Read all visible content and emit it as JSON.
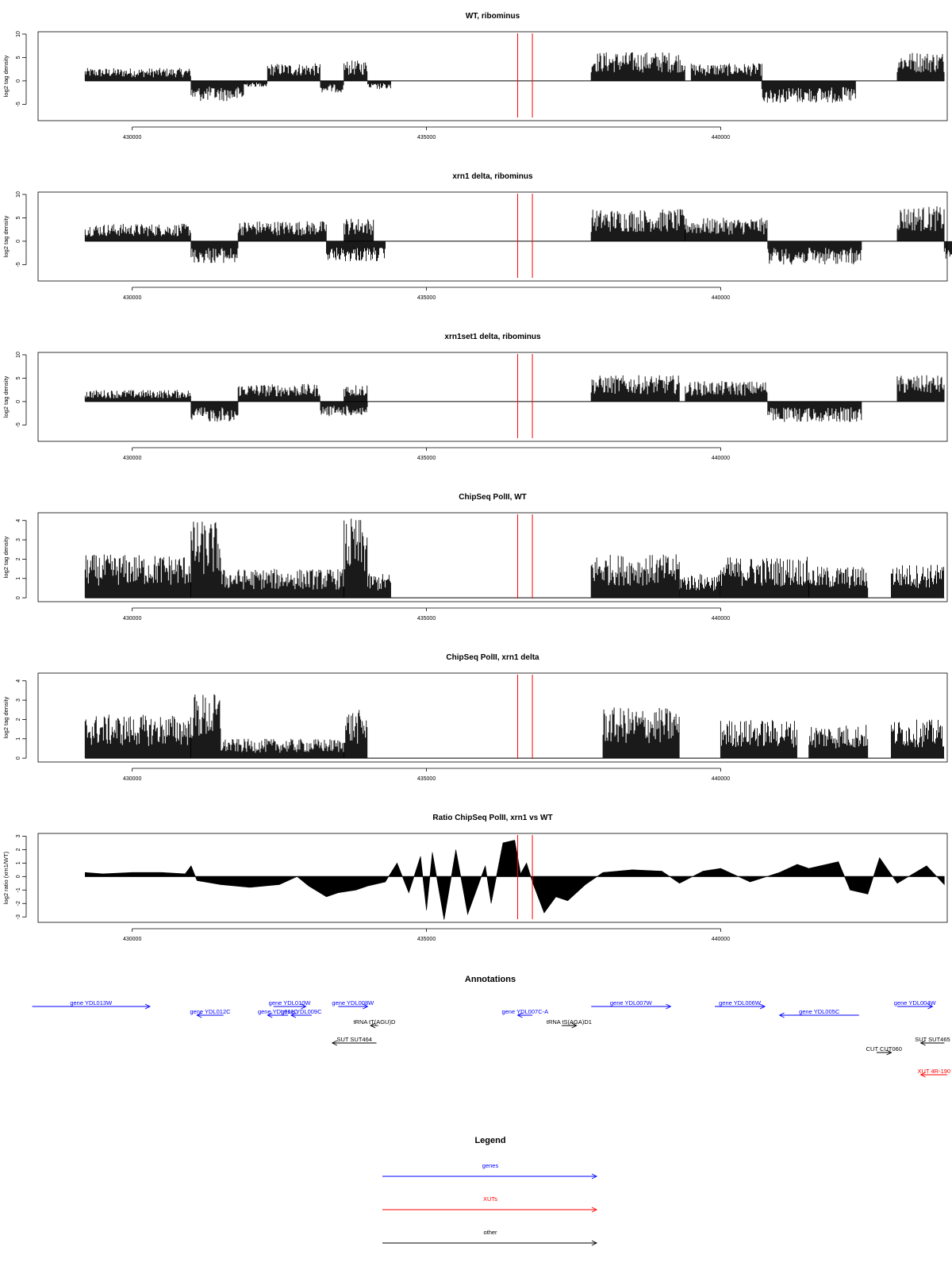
{
  "colors": {
    "signal": "#000000",
    "marker": "#ff0000",
    "gene": "#0000ff",
    "xut": "#ff0000",
    "other": "#000000",
    "frame": "#000000"
  },
  "chart_data": [
    {
      "type": "bar",
      "title": "WT, ribominus",
      "xlabel": "",
      "ylabel": "log2 tag density",
      "xlim": [
        428400,
        443850
      ],
      "ylim": [
        -8.5,
        10.5
      ],
      "yticks": [
        -5,
        0,
        5,
        10
      ],
      "ytick_labels": [
        "-5",
        "0",
        "5",
        "10"
      ],
      "xticks": [
        430000,
        435000,
        440000
      ],
      "xtick_labels": [
        "430000",
        "435000",
        "440000"
      ],
      "baseline": 0,
      "red_markers": [
        436550,
        436800
      ],
      "segments": [
        {
          "x": [
            429200,
            431000
          ],
          "level": 2.2
        },
        {
          "x": [
            431000,
            431900
          ],
          "level": -3.5
        },
        {
          "x": [
            431900,
            432300
          ],
          "level": -1.0
        },
        {
          "x": [
            432300,
            433200
          ],
          "level": 3.0
        },
        {
          "x": [
            433200,
            433600
          ],
          "level": -2.0
        },
        {
          "x": [
            433600,
            434000
          ],
          "level": 3.5
        },
        {
          "x": [
            434000,
            434400
          ],
          "level": -1.5
        },
        {
          "x": [
            437800,
            439400
          ],
          "level": 5.0
        },
        {
          "x": [
            439500,
            440700
          ],
          "level": 3.0
        },
        {
          "x": [
            440700,
            442300
          ],
          "level": -3.8
        },
        {
          "x": [
            443000,
            443800
          ],
          "level": 5.0
        }
      ]
    },
    {
      "type": "bar",
      "title": "xrn1 delta, ribominus",
      "xlabel": "",
      "ylabel": "log2 tag density",
      "xlim": [
        428400,
        443850
      ],
      "ylim": [
        -8.5,
        10.5
      ],
      "yticks": [
        -5,
        0,
        5,
        10
      ],
      "ytick_labels": [
        "-5",
        "0",
        "5",
        "10"
      ],
      "xticks": [
        430000,
        435000,
        440000
      ],
      "xtick_labels": [
        "430000",
        "435000",
        "440000"
      ],
      "baseline": 0,
      "red_markers": [
        436550,
        436800
      ],
      "segments": [
        {
          "x": [
            429200,
            431000
          ],
          "level": 3.0
        },
        {
          "x": [
            431000,
            431800
          ],
          "level": -3.8
        },
        {
          "x": [
            431800,
            433300
          ],
          "level": 3.5
        },
        {
          "x": [
            433300,
            434300
          ],
          "level": -3.5
        },
        {
          "x": [
            433600,
            434100
          ],
          "level": 4.0
        },
        {
          "x": [
            437800,
            439400
          ],
          "level": 5.5
        },
        {
          "x": [
            439400,
            440800
          ],
          "level": 4.0
        },
        {
          "x": [
            440800,
            442400
          ],
          "level": -4.0
        },
        {
          "x": [
            443000,
            443800
          ],
          "level": 6.0
        },
        {
          "x": [
            443800,
            444250
          ],
          "level": -3.0
        }
      ]
    },
    {
      "type": "bar",
      "title": "xrn1set1 delta, ribominus",
      "xlabel": "",
      "ylabel": "log2 tag density",
      "xlim": [
        428400,
        443850
      ],
      "ylim": [
        -8.5,
        10.5
      ],
      "yticks": [
        -5,
        0,
        5,
        10
      ],
      "ytick_labels": [
        "-5",
        "0",
        "5",
        "10"
      ],
      "xticks": [
        430000,
        435000,
        440000
      ],
      "xtick_labels": [
        "430000",
        "435000",
        "440000"
      ],
      "baseline": 0,
      "red_markers": [
        436550,
        436800
      ],
      "segments": [
        {
          "x": [
            429200,
            431000
          ],
          "level": 2.0
        },
        {
          "x": [
            431000,
            431800
          ],
          "level": -3.5
        },
        {
          "x": [
            431800,
            433200
          ],
          "level": 3.0
        },
        {
          "x": [
            433200,
            434000
          ],
          "level": -2.5
        },
        {
          "x": [
            433600,
            434000
          ],
          "level": 3.0
        },
        {
          "x": [
            437800,
            439300
          ],
          "level": 4.5
        },
        {
          "x": [
            439400,
            440800
          ],
          "level": 3.5
        },
        {
          "x": [
            440800,
            442400
          ],
          "level": -3.5
        },
        {
          "x": [
            443000,
            443800
          ],
          "level": 4.5
        }
      ]
    },
    {
      "type": "bar",
      "title": "ChipSeq PolII, WT",
      "xlabel": "",
      "ylabel": "log2 tag density",
      "xlim": [
        428400,
        443850
      ],
      "ylim": [
        -0.2,
        4.4
      ],
      "yticks": [
        0,
        1,
        2,
        3,
        4
      ],
      "ytick_labels": [
        "0",
        "1",
        "2",
        "3",
        "4"
      ],
      "xticks": [
        430000,
        435000,
        440000
      ],
      "xtick_labels": [
        "430000",
        "435000",
        "440000"
      ],
      "baseline": 0,
      "red_markers": [
        436550,
        436800
      ],
      "segments": [
        {
          "x": [
            429200,
            431000
          ],
          "level": 1.8
        },
        {
          "x": [
            431000,
            431500
          ],
          "level": 3.2
        },
        {
          "x": [
            431500,
            433600
          ],
          "level": 1.2
        },
        {
          "x": [
            433600,
            434000
          ],
          "level": 3.3
        },
        {
          "x": [
            434000,
            434400
          ],
          "level": 1.0
        },
        {
          "x": [
            437800,
            439300
          ],
          "level": 1.8
        },
        {
          "x": [
            439300,
            440000
          ],
          "level": 1.0
        },
        {
          "x": [
            440000,
            441500
          ],
          "level": 1.7
        },
        {
          "x": [
            441500,
            442500
          ],
          "level": 1.3
        },
        {
          "x": [
            442900,
            443800
          ],
          "level": 1.4
        }
      ]
    },
    {
      "type": "bar",
      "title": "ChipSeq PolII, xrn1 delta",
      "xlabel": "",
      "ylabel": "log2 tag density",
      "xlim": [
        428400,
        443850
      ],
      "ylim": [
        -0.2,
        4.4
      ],
      "yticks": [
        0,
        1,
        2,
        3,
        4
      ],
      "ytick_labels": [
        "0",
        "1",
        "2",
        "3",
        "4"
      ],
      "xticks": [
        430000,
        435000,
        440000
      ],
      "xtick_labels": [
        "430000",
        "435000",
        "440000"
      ],
      "baseline": 0,
      "red_markers": [
        436550,
        436800
      ],
      "segments": [
        {
          "x": [
            429200,
            431000
          ],
          "level": 1.8
        },
        {
          "x": [
            431000,
            431500
          ],
          "level": 2.7
        },
        {
          "x": [
            431500,
            433600
          ],
          "level": 0.8
        },
        {
          "x": [
            433600,
            434000
          ],
          "level": 2.0
        },
        {
          "x": [
            438000,
            439300
          ],
          "level": 2.1
        },
        {
          "x": [
            440000,
            441300
          ],
          "level": 1.6
        },
        {
          "x": [
            441500,
            442500
          ],
          "level": 1.4
        },
        {
          "x": [
            442900,
            443800
          ],
          "level": 1.6
        }
      ]
    },
    {
      "type": "area",
      "title": "Ratio ChipSeq PolII, xrn1 vs WT",
      "xlabel": "",
      "ylabel": "log2 ratio (xrn1/WT)",
      "xlim": [
        428400,
        443850
      ],
      "ylim": [
        -3.4,
        3.2
      ],
      "yticks": [
        -3,
        -2,
        -1,
        0,
        1,
        2,
        3
      ],
      "ytick_labels": [
        "-3",
        "-2",
        "-1",
        "0",
        "1",
        "2",
        "3"
      ],
      "xticks": [
        430000,
        435000,
        440000
      ],
      "xtick_labels": [
        "430000",
        "435000",
        "440000"
      ],
      "baseline": 0,
      "red_markers": [
        436550,
        436800
      ],
      "x": [
        429200,
        429500,
        430000,
        430500,
        430900,
        431000,
        431100,
        431500,
        432000,
        432500,
        432800,
        433000,
        433300,
        433500,
        433800,
        434000,
        434300,
        434500,
        434700,
        434900,
        435000,
        435100,
        435300,
        435500,
        435700,
        436000,
        436100,
        436300,
        436500,
        436600,
        436700,
        436800,
        437000,
        437200,
        437400,
        437700,
        438000,
        438500,
        439000,
        439300,
        439700,
        440000,
        440500,
        441000,
        441300,
        441500,
        442000,
        442200,
        442500,
        442700,
        443000,
        443500,
        443800
      ],
      "y": [
        0.3,
        0.2,
        0.3,
        0.3,
        0.2,
        0.8,
        -0.3,
        -0.6,
        -0.8,
        -0.6,
        0.0,
        -0.7,
        -1.5,
        -1.2,
        -1.0,
        -0.7,
        -0.4,
        1.0,
        -1.2,
        1.5,
        -2.5,
        1.8,
        -3.2,
        2.0,
        -2.8,
        0.8,
        -2.0,
        2.5,
        2.7,
        0.2,
        1.0,
        -0.4,
        -2.7,
        -1.5,
        -1.8,
        -0.6,
        0.3,
        0.5,
        0.4,
        -0.5,
        0.4,
        0.6,
        -0.4,
        0.3,
        0.9,
        0.6,
        1.1,
        -1.0,
        -1.3,
        1.4,
        -0.5,
        0.8,
        -0.6
      ]
    }
  ],
  "annotations": {
    "title": "Annotations",
    "xlim": [
      428400,
      443850
    ],
    "items": [
      {
        "label": "gene YDL013W",
        "x": [
          428300,
          430300
        ],
        "row": 0,
        "strand": "+",
        "kind": "gene"
      },
      {
        "label": "gene YDL012C",
        "x": [
          431100,
          431550
        ],
        "row": 1,
        "strand": "-",
        "kind": "gene"
      },
      {
        "label": "gene YDL010W",
        "x": [
          432400,
          432950
        ],
        "row": 0,
        "strand": "+",
        "kind": "gene"
      },
      {
        "label": "gene YDL011C",
        "x": [
          432300,
          432650
        ],
        "row": 1,
        "strand": "-",
        "kind": "gene"
      },
      {
        "label": "gene YDL009C",
        "x": [
          432700,
          433050
        ],
        "row": 1,
        "strand": "-",
        "kind": "gene"
      },
      {
        "label": "gene YDL008W",
        "x": [
          433500,
          434000
        ],
        "row": 0,
        "strand": "+",
        "kind": "gene"
      },
      {
        "label": "tRNA tT(AGU)D",
        "x": [
          434050,
          434180
        ],
        "row": 2,
        "strand": "-",
        "kind": "other"
      },
      {
        "label": "SUT SUT464",
        "x": [
          433400,
          434150
        ],
        "row": 3,
        "strand": "-",
        "kind": "other"
      },
      {
        "label": "gene YDL007C-A",
        "x": [
          436550,
          436800
        ],
        "row": 1,
        "strand": "-",
        "kind": "gene"
      },
      {
        "label": "tRNA tS(AGA)D1",
        "x": [
          437300,
          437550
        ],
        "row": 2,
        "strand": "+",
        "kind": "other"
      },
      {
        "label": "gene YDL007W",
        "x": [
          437800,
          439150
        ],
        "row": 0,
        "strand": "+",
        "kind": "gene"
      },
      {
        "label": "gene YDL006W",
        "x": [
          439900,
          440750
        ],
        "row": 0,
        "strand": "+",
        "kind": "gene"
      },
      {
        "label": "gene YDL005C",
        "x": [
          441000,
          442350
        ],
        "row": 1,
        "strand": "-",
        "kind": "gene"
      },
      {
        "label": "gene YDL004W",
        "x": [
          443000,
          443600
        ],
        "row": 0,
        "strand": "+",
        "kind": "gene"
      },
      {
        "label": "CUT CUT060",
        "x": [
          442650,
          442900
        ],
        "row": 4,
        "strand": "+",
        "kind": "other"
      },
      {
        "label": "SUT SUT465",
        "x": [
          443400,
          443800
        ],
        "row": 3,
        "strand": "-",
        "kind": "other"
      },
      {
        "label": "XUT 4R-190",
        "x": [
          443400,
          443850
        ],
        "row": 5,
        "strand": "-",
        "kind": "xut"
      }
    ]
  },
  "legend": {
    "title": "Legend",
    "items": [
      {
        "label": "genes",
        "kind": "gene"
      },
      {
        "label": "XUTs",
        "kind": "xut"
      },
      {
        "label": "other",
        "kind": "other"
      }
    ]
  }
}
